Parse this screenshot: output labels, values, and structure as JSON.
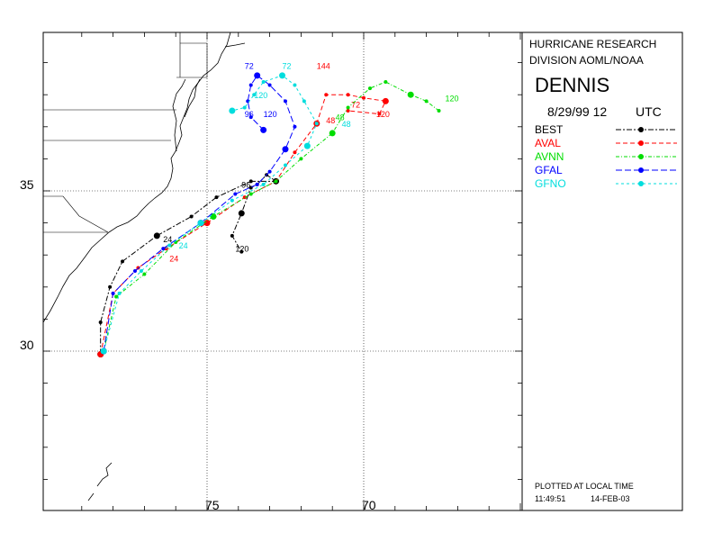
{
  "header": {
    "org_line1": "HURRICANE RESEARCH",
    "org_line2": "DIVISION AOML/NOAA",
    "storm_name": "DENNIS",
    "init_date": "8/29/99 12",
    "init_tz": "UTC"
  },
  "footer": {
    "plotted_note": "PLOTTED AT LOCAL TIME",
    "time": "11:49:51",
    "date": "14-FEB-03"
  },
  "axes": {
    "lat_labels": [
      "35",
      "30"
    ],
    "lon_labels": [
      "75",
      "70"
    ]
  },
  "legend": [
    {
      "name": "BEST",
      "color": "#000000",
      "dash": "6,2,2,2"
    },
    {
      "name": "AVAL",
      "color": "#ff0000",
      "dash": "5,3"
    },
    {
      "name": "AVNN",
      "color": "#00dd00",
      "dash": "4,2,1,2"
    },
    {
      "name": "GFAL",
      "color": "#0000ff",
      "dash": "7,3"
    },
    {
      "name": "GFNO",
      "color": "#00dddd",
      "dash": "3,3"
    }
  ],
  "chart_data": {
    "type": "map-track",
    "lon_range": [
      -80.0,
      -64.0
    ],
    "lat_range": [
      25.0,
      40.0
    ],
    "grid_lat": [
      30,
      35
    ],
    "grid_lon": [
      -75,
      -70
    ],
    "tracks": [
      {
        "name": "BEST",
        "color": "#000000",
        "points": [
          [
            -78.4,
            29.9
          ],
          [
            -78.4,
            30.9
          ],
          [
            -78.1,
            32.0
          ],
          [
            -77.7,
            32.8
          ],
          [
            -76.6,
            33.6
          ],
          [
            -75.5,
            34.2
          ],
          [
            -74.7,
            34.8
          ],
          [
            -73.6,
            35.3
          ],
          [
            -72.8,
            35.3
          ],
          [
            -73.1,
            35.5
          ],
          [
            -73.4,
            35.2
          ],
          [
            -73.6,
            35.1
          ],
          [
            -73.9,
            34.3
          ],
          [
            -74.2,
            33.6
          ],
          [
            -73.9,
            33.1
          ]
        ],
        "labels": [
          {
            "t": "24",
            "lon": -76.4,
            "lat": 33.4
          },
          {
            "t": "96",
            "lon": -73.9,
            "lat": 35.1
          },
          {
            "t": "120",
            "lon": -74.1,
            "lat": 33.1
          }
        ]
      },
      {
        "name": "AVAL",
        "color": "#ff0000",
        "points": [
          [
            -78.4,
            29.9
          ],
          [
            -78.0,
            31.8
          ],
          [
            -77.2,
            32.6
          ],
          [
            -76.3,
            33.2
          ],
          [
            -75.0,
            34.0
          ],
          [
            -73.8,
            34.8
          ],
          [
            -72.8,
            35.3
          ],
          [
            -72.2,
            36.2
          ],
          [
            -71.5,
            37.1
          ],
          [
            -71.2,
            38.0
          ],
          [
            -70.5,
            38.0
          ],
          [
            -70.0,
            37.9
          ],
          [
            -69.3,
            37.8
          ],
          [
            -69.5,
            37.4
          ],
          [
            -70.5,
            37.5
          ]
        ],
        "labels": [
          {
            "t": "24",
            "lon": -76.2,
            "lat": 32.8
          },
          {
            "t": "48",
            "lon": -71.2,
            "lat": 37.1
          },
          {
            "t": "72",
            "lon": -70.4,
            "lat": 37.6
          },
          {
            "t": "120",
            "lon": -69.6,
            "lat": 37.3
          },
          {
            "t": "144",
            "lon": -71.5,
            "lat": 38.8
          }
        ]
      },
      {
        "name": "AVNN",
        "color": "#00dd00",
        "points": [
          [
            -78.3,
            30.0
          ],
          [
            -77.9,
            31.7
          ],
          [
            -77.0,
            32.4
          ],
          [
            -76.0,
            33.4
          ],
          [
            -74.8,
            34.2
          ],
          [
            -73.6,
            34.9
          ],
          [
            -72.8,
            35.3
          ],
          [
            -72.0,
            36.0
          ],
          [
            -71.0,
            36.8
          ],
          [
            -70.5,
            37.6
          ],
          [
            -69.8,
            38.2
          ],
          [
            -69.3,
            38.4
          ],
          [
            -68.5,
            38.0
          ],
          [
            -68.0,
            37.8
          ],
          [
            -67.6,
            37.5
          ]
        ],
        "labels": [
          {
            "t": "48",
            "lon": -70.9,
            "lat": 37.2
          },
          {
            "t": "120",
            "lon": -67.4,
            "lat": 37.8
          }
        ]
      },
      {
        "name": "GFAL",
        "color": "#0000ff",
        "points": [
          [
            -78.3,
            30.0
          ],
          [
            -78.0,
            31.8
          ],
          [
            -77.3,
            32.5
          ],
          [
            -76.4,
            33.2
          ],
          [
            -75.2,
            34.0
          ],
          [
            -74.1,
            34.9
          ],
          [
            -73.4,
            35.2
          ],
          [
            -73.0,
            35.6
          ],
          [
            -72.5,
            36.3
          ],
          [
            -72.2,
            37.0
          ],
          [
            -72.5,
            37.8
          ],
          [
            -73.0,
            38.3
          ],
          [
            -73.4,
            38.6
          ],
          [
            -73.6,
            38.3
          ],
          [
            -73.7,
            37.8
          ],
          [
            -73.6,
            37.3
          ],
          [
            -73.2,
            36.9
          ]
        ],
        "labels": [
          {
            "t": "72",
            "lon": -73.8,
            "lat": 38.8
          },
          {
            "t": "96",
            "lon": -73.8,
            "lat": 37.3
          },
          {
            "t": "120",
            "lon": -73.2,
            "lat": 37.3
          }
        ]
      },
      {
        "name": "GFNO",
        "color": "#00dddd",
        "points": [
          [
            -78.3,
            30.0
          ],
          [
            -77.8,
            31.8
          ],
          [
            -77.1,
            32.5
          ],
          [
            -76.2,
            33.3
          ],
          [
            -75.2,
            34.0
          ],
          [
            -74.2,
            34.7
          ],
          [
            -73.2,
            35.2
          ],
          [
            -72.5,
            35.8
          ],
          [
            -71.8,
            36.4
          ],
          [
            -71.5,
            37.1
          ],
          [
            -71.9,
            37.8
          ],
          [
            -72.2,
            38.3
          ],
          [
            -72.6,
            38.6
          ],
          [
            -73.2,
            38.4
          ],
          [
            -73.5,
            38.0
          ],
          [
            -73.8,
            37.6
          ],
          [
            -74.2,
            37.5
          ]
        ],
        "labels": [
          {
            "t": "24",
            "lon": -75.9,
            "lat": 33.2
          },
          {
            "t": "72",
            "lon": -72.6,
            "lat": 38.8
          },
          {
            "t": "120",
            "lon": -73.5,
            "lat": 37.9
          },
          {
            "t": "48",
            "lon": -70.7,
            "lat": 37.0
          }
        ]
      }
    ]
  }
}
